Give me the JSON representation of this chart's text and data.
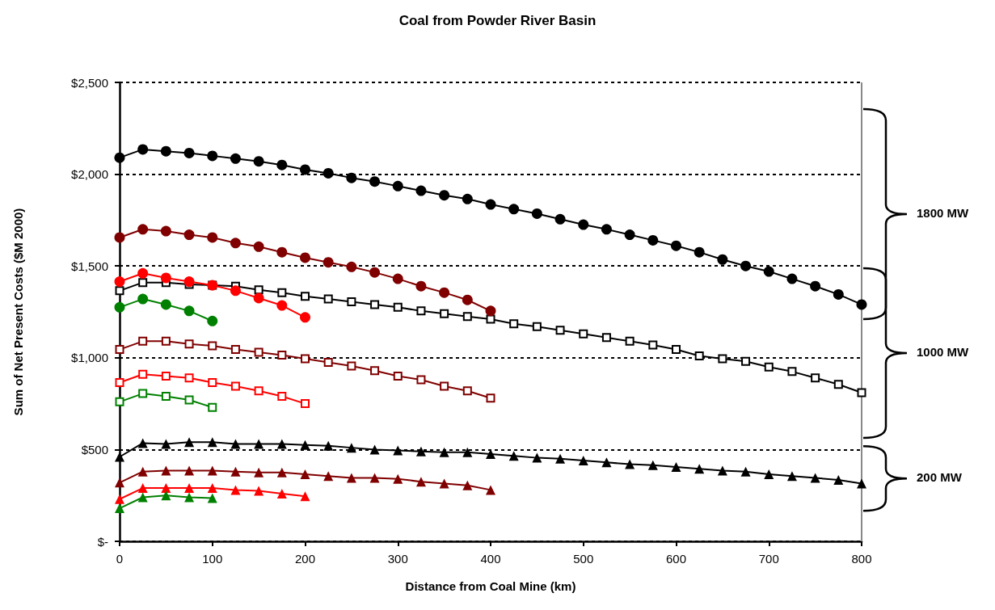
{
  "chart_data": {
    "type": "line",
    "title": "Coal from Powder River Basin",
    "xlabel": "Distance from Coal Mine (km)",
    "ylabel": "Sum of Net Present Costs ($M 2000)",
    "xlim": [
      0,
      800
    ],
    "xticks": [
      0,
      100,
      200,
      300,
      400,
      500,
      600,
      700,
      800
    ],
    "ylim": [
      0,
      2500
    ],
    "yticks": [
      {
        "value": 0,
        "label": "$-"
      },
      {
        "value": 500,
        "label": "$500"
      },
      {
        "value": 1000,
        "label": "$1,000"
      },
      {
        "value": 1500,
        "label": "$1,500"
      },
      {
        "value": 2000,
        "label": "$2,000"
      },
      {
        "value": 2500,
        "label": "$2,500"
      }
    ],
    "grid": "y",
    "line_style": "solid",
    "annotations": [
      "1800 MW",
      "1000 MW",
      "200 MW"
    ],
    "series": [
      {
        "color": "#000000",
        "marker": "circle",
        "x": [
          0,
          25,
          50,
          75,
          100,
          125,
          150,
          175,
          200,
          225,
          250,
          275,
          300,
          325,
          350,
          375,
          400,
          425,
          450,
          475,
          500,
          525,
          550,
          575,
          600,
          625,
          650,
          675,
          700,
          725,
          750,
          775,
          800
        ],
        "values": [
          2090,
          2135,
          2125,
          2115,
          2100,
          2085,
          2070,
          2050,
          2025,
          2005,
          1980,
          1960,
          1935,
          1910,
          1885,
          1865,
          1835,
          1810,
          1785,
          1755,
          1725,
          1700,
          1670,
          1640,
          1610,
          1575,
          1535,
          1500,
          1470,
          1430,
          1390,
          1345,
          1290
        ]
      },
      {
        "color": "#800000",
        "marker": "circle",
        "x": [
          0,
          25,
          50,
          75,
          100,
          125,
          150,
          175,
          200,
          225,
          250,
          275,
          300,
          325,
          350,
          375,
          400
        ],
        "values": [
          1655,
          1700,
          1690,
          1670,
          1655,
          1625,
          1605,
          1575,
          1545,
          1520,
          1495,
          1465,
          1430,
          1390,
          1355,
          1315,
          1255
        ]
      },
      {
        "color": "#ff0000",
        "marker": "circle",
        "x": [
          0,
          25,
          50,
          75,
          100,
          125,
          150,
          175,
          200
        ],
        "values": [
          1415,
          1460,
          1435,
          1415,
          1395,
          1365,
          1325,
          1285,
          1220
        ]
      },
      {
        "color": "#008000",
        "marker": "circle",
        "x": [
          0,
          25,
          50,
          75,
          100
        ],
        "values": [
          1275,
          1320,
          1290,
          1255,
          1200
        ]
      },
      {
        "color": "#000000",
        "marker": "square",
        "x": [
          0,
          25,
          50,
          75,
          100,
          125,
          150,
          175,
          200,
          225,
          250,
          275,
          300,
          325,
          350,
          375,
          400,
          425,
          450,
          475,
          500,
          525,
          550,
          575,
          600,
          625,
          650,
          675,
          700,
          725,
          750,
          775,
          800
        ],
        "values": [
          1365,
          1410,
          1410,
          1400,
          1395,
          1390,
          1370,
          1355,
          1335,
          1320,
          1305,
          1290,
          1275,
          1255,
          1240,
          1225,
          1210,
          1185,
          1170,
          1150,
          1130,
          1110,
          1090,
          1070,
          1045,
          1010,
          995,
          980,
          950,
          925,
          890,
          855,
          810
        ]
      },
      {
        "color": "#800000",
        "marker": "square",
        "x": [
          0,
          25,
          50,
          75,
          100,
          125,
          150,
          175,
          200,
          225,
          250,
          275,
          300,
          325,
          350,
          375,
          400
        ],
        "values": [
          1045,
          1090,
          1090,
          1075,
          1065,
          1045,
          1030,
          1015,
          995,
          975,
          955,
          930,
          900,
          880,
          845,
          820,
          780
        ]
      },
      {
        "color": "#ff0000",
        "marker": "square",
        "x": [
          0,
          25,
          50,
          75,
          100,
          125,
          150,
          175,
          200
        ],
        "values": [
          865,
          910,
          900,
          890,
          865,
          845,
          820,
          790,
          750
        ]
      },
      {
        "color": "#008000",
        "marker": "square",
        "x": [
          0,
          25,
          50,
          75,
          100
        ],
        "values": [
          760,
          805,
          790,
          770,
          730
        ]
      },
      {
        "color": "#000000",
        "marker": "triangle",
        "x": [
          0,
          25,
          50,
          75,
          100,
          125,
          150,
          175,
          200,
          225,
          250,
          275,
          300,
          325,
          350,
          375,
          400,
          425,
          450,
          475,
          500,
          525,
          550,
          575,
          600,
          625,
          650,
          675,
          700,
          725,
          750,
          775,
          800
        ],
        "values": [
          460,
          535,
          530,
          540,
          540,
          530,
          530,
          530,
          525,
          520,
          510,
          500,
          495,
          490,
          485,
          485,
          475,
          465,
          455,
          450,
          440,
          430,
          420,
          415,
          405,
          395,
          385,
          380,
          365,
          355,
          345,
          335,
          315
        ]
      },
      {
        "color": "#800000",
        "marker": "triangle",
        "x": [
          0,
          25,
          50,
          75,
          100,
          125,
          150,
          175,
          200,
          225,
          250,
          275,
          300,
          325,
          350,
          375,
          400
        ],
        "values": [
          320,
          380,
          385,
          385,
          385,
          380,
          375,
          375,
          365,
          355,
          345,
          345,
          340,
          325,
          315,
          305,
          280
        ]
      },
      {
        "color": "#ff0000",
        "marker": "triangle",
        "x": [
          0,
          25,
          50,
          75,
          100,
          125,
          150,
          175,
          200
        ],
        "values": [
          230,
          290,
          290,
          290,
          290,
          280,
          275,
          260,
          245
        ]
      },
      {
        "color": "#008000",
        "marker": "triangle",
        "x": [
          0,
          25,
          50,
          75,
          100
        ],
        "values": [
          180,
          240,
          250,
          240,
          235
        ]
      }
    ]
  }
}
